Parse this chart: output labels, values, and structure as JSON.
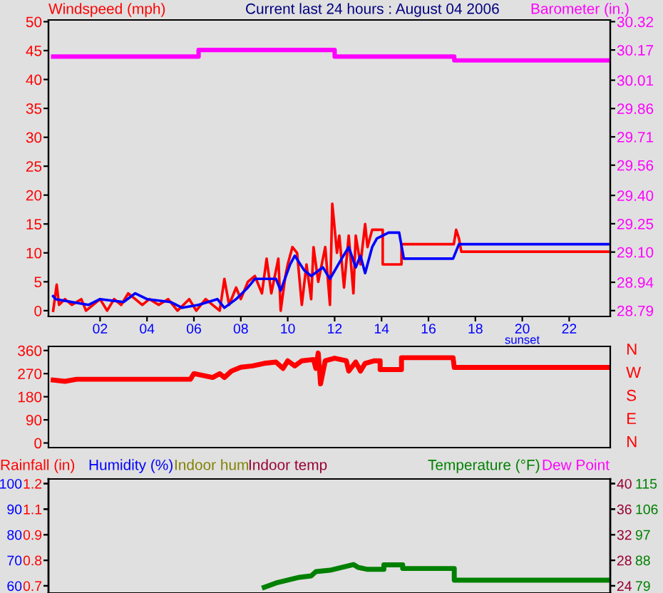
{
  "chart_data": [
    {
      "type": "line",
      "title": "Current last 24 hours : August 04 2006",
      "ylabel": "Windspeed (mph)",
      "y2label": "Barometer (in.)",
      "xlim": [
        -0.2,
        23.75
      ],
      "xticks": [
        {
          "value": 2,
          "label": "02"
        },
        {
          "value": 4,
          "label": "04"
        },
        {
          "value": 6,
          "label": "06"
        },
        {
          "value": 8,
          "label": "08"
        },
        {
          "value": 10,
          "label": "10"
        },
        {
          "value": 12,
          "label": "12"
        },
        {
          "value": 14,
          "label": "14"
        },
        {
          "value": 16,
          "label": "16"
        },
        {
          "value": 18,
          "label": "18"
        },
        {
          "value": 20,
          "label": "20"
        },
        {
          "value": 22,
          "label": "22"
        }
      ],
      "ylim": [
        -1,
        50.3
      ],
      "yticks": [
        0,
        5,
        10,
        15,
        20,
        25,
        30,
        35,
        40,
        45,
        50
      ],
      "y2lim": [
        28.759,
        30.329
      ],
      "y2ticks": [
        {
          "value": 28.79,
          "label": "28.79"
        },
        {
          "value": 28.94,
          "label": "28.94"
        },
        {
          "value": 29.1,
          "label": "29.10"
        },
        {
          "value": 29.25,
          "label": "29.25"
        },
        {
          "value": 29.4,
          "label": "29.40"
        },
        {
          "value": 29.56,
          "label": "29.56"
        },
        {
          "value": 29.71,
          "label": "29.71"
        },
        {
          "value": 29.86,
          "label": "29.86"
        },
        {
          "value": 30.01,
          "label": "30.01"
        },
        {
          "value": 30.17,
          "label": "30.17"
        },
        {
          "value": 30.32,
          "label": "30.32"
        }
      ],
      "annotations": [
        "sunset"
      ],
      "series": [
        {
          "color": "#ff0000",
          "x": [
            0.0,
            0.15,
            0.25,
            0.5,
            0.8,
            1.2,
            1.4,
            1.7,
            2.0,
            2.3,
            2.6,
            2.9,
            3.2,
            3.5,
            3.8,
            4.1,
            4.5,
            4.9,
            5.3,
            5.8,
            6.1,
            6.5,
            6.8,
            7.1,
            7.3,
            7.5,
            7.8,
            8.0,
            8.3,
            8.6,
            8.9,
            9.1,
            9.3,
            9.6,
            9.7,
            9.9,
            10.0,
            10.2,
            10.4,
            10.6,
            10.8,
            11.0,
            11.1,
            11.3,
            11.6,
            11.8,
            11.9,
            12.1,
            12.2,
            12.4,
            12.6,
            12.8,
            12.9,
            13.1,
            13.3,
            13.4,
            13.6,
            14.05,
            14.05,
            14.85,
            14.85,
            17.08,
            17.18,
            17.3,
            17.4,
            23.66
          ],
          "values": [
            0,
            4.5,
            1,
            2,
            1,
            2,
            0,
            1,
            2,
            0,
            2,
            1,
            3,
            2,
            1,
            2,
            1,
            2,
            0,
            2,
            0,
            2,
            1,
            0,
            5.5,
            1,
            4,
            2,
            5,
            6,
            3,
            9,
            3,
            9,
            0,
            6,
            8,
            11,
            10,
            1,
            8,
            2,
            11,
            5,
            11,
            1,
            18.5,
            10,
            13,
            4,
            13,
            3,
            13,
            8,
            15,
            11,
            14,
            14,
            8,
            8,
            11.5,
            11.5,
            14,
            12.5,
            10.2,
            10.2
          ]
        },
        {
          "color": "#0000ff",
          "x": [
            0.0,
            0.1,
            1.5,
            2.0,
            3.0,
            3.5,
            4.0,
            5.0,
            5.5,
            6.2,
            7.0,
            7.3,
            7.8,
            8.3,
            8.6,
            9.5,
            9.7,
            10.1,
            10.3,
            10.7,
            11.0,
            11.5,
            11.8,
            12.3,
            12.6,
            12.9,
            13.1,
            13.3,
            13.6,
            13.8,
            14.3,
            14.75,
            14.95,
            17.05,
            17.3,
            23.66
          ],
          "values": [
            2.5,
            2,
            1,
            2,
            1.5,
            3,
            2,
            1.5,
            0.5,
            1,
            2,
            0.5,
            2,
            4,
            5.5,
            5.5,
            3.5,
            8,
            9.5,
            7,
            6,
            7.5,
            5.5,
            9,
            11,
            7.5,
            9.5,
            6.5,
            11,
            12.5,
            13.5,
            13.5,
            9,
            9,
            11.5,
            11.5
          ]
        },
        {
          "color": "#ff00ff",
          "axis": "y2",
          "x": [
            0.0,
            6.2,
            6.2,
            12.0,
            12.0,
            17.1,
            17.1,
            23.66
          ],
          "values": [
            30.135,
            30.135,
            30.17,
            30.17,
            30.135,
            30.135,
            30.115,
            30.115
          ]
        }
      ]
    },
    {
      "type": "line",
      "xlim": [
        -0.2,
        23.75
      ],
      "tick_labels": "y",
      "ylim": [
        -18,
        376
      ],
      "yticks": [
        0,
        90,
        180,
        270,
        360
      ],
      "annotations": [
        "N",
        "W",
        "S",
        "E",
        "N"
      ],
      "series": [
        {
          "color": "#ff0000",
          "x": [
            0.0,
            0.5,
            1.0,
            5.85,
            6.0,
            6.8,
            7.1,
            7.3,
            7.6,
            8.0,
            8.5,
            9.0,
            9.5,
            9.8,
            10.0,
            10.3,
            10.6,
            11.1,
            11.2,
            11.3,
            11.4,
            11.6,
            12.0,
            12.5,
            12.6,
            12.9,
            13.1,
            13.3,
            13.7,
            13.94,
            13.94,
            14.85,
            14.85,
            17.05,
            17.1,
            23.66
          ],
          "values": [
            245,
            240,
            248,
            248,
            270,
            255,
            270,
            255,
            280,
            295,
            300,
            310,
            315,
            290,
            320,
            300,
            320,
            325,
            290,
            350,
            230,
            320,
            330,
            320,
            280,
            315,
            280,
            310,
            320,
            320,
            286,
            286,
            332,
            332,
            294,
            294
          ]
        }
      ]
    },
    {
      "type": "line",
      "xlim": [
        -0.2,
        23.75
      ],
      "tick_labels": "y",
      "y2label": "Rainfall (in)",
      "annotations": [
        "Humidity (%)",
        "Indoor hum"
      ],
      "ylim": [
        57.2,
        101.8
      ],
      "yticks": [
        60,
        70,
        80,
        90,
        100
      ],
      "y2lim": [
        0.665,
        1.2225
      ],
      "y2ticks": [
        {
          "value": 0.7,
          "label": "0.7"
        },
        {
          "value": 0.825,
          "label": "0.8"
        },
        {
          "value": 0.95,
          "label": "0.9"
        },
        {
          "value": 1.075,
          "label": "1.1"
        },
        {
          "value": 1.2,
          "label": "1.2"
        }
      ]
    },
    {
      "type": "line",
      "xlim": [
        -0.2,
        23.75
      ],
      "tick_labels": "y",
      "ylabel": "Indoor temp",
      "annotations": [
        "Temperature (°F)",
        "Dew Point"
      ],
      "ylim": [
        22.88,
        40.72
      ],
      "yticks": [
        24,
        28,
        32,
        36,
        40
      ],
      "y2lim": [
        76.48,
        116.6
      ],
      "y2ticks": [
        79,
        88,
        97,
        106,
        115
      ],
      "series": [
        {
          "color": "#008000",
          "axis": "y2",
          "x": [
            9.0,
            9.5,
            10.0,
            10.5,
            11.0,
            11.2,
            11.8,
            12.3,
            12.8,
            13.0,
            13.4,
            14.1,
            14.1,
            14.9,
            14.9,
            17.1,
            17.1,
            23.66
          ],
          "values": [
            78.5,
            80,
            81,
            82,
            82.5,
            84,
            84.5,
            85.5,
            86.5,
            85.5,
            84.8,
            84.8,
            86.4,
            86.4,
            85.1,
            85.1,
            81,
            81
          ]
        }
      ]
    }
  ]
}
